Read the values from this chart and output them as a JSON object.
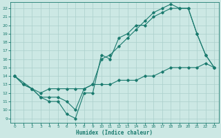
{
  "title": "",
  "xlabel": "Humidex (Indice chaleur)",
  "background_color": "#cce8e4",
  "grid_color": "#aacfcb",
  "line_color": "#1a7a6e",
  "xlim": [
    -0.5,
    23.5
  ],
  "ylim": [
    8.5,
    22.7
  ],
  "xticks": [
    0,
    1,
    2,
    3,
    4,
    5,
    6,
    7,
    8,
    9,
    10,
    11,
    12,
    13,
    14,
    15,
    16,
    17,
    18,
    19,
    20,
    21,
    22,
    23
  ],
  "yticks": [
    9,
    10,
    11,
    12,
    13,
    14,
    15,
    16,
    17,
    18,
    19,
    20,
    21,
    22
  ],
  "line1_x": [
    0,
    1,
    2,
    3,
    4,
    5,
    6,
    7,
    8,
    9,
    10,
    11,
    12,
    13,
    14,
    15,
    16,
    17,
    18,
    19,
    20,
    21,
    22,
    23
  ],
  "line1_y": [
    14,
    13,
    12.5,
    11.5,
    11,
    11,
    9.5,
    9,
    12,
    12,
    16.5,
    16,
    18.5,
    19,
    20,
    20,
    21,
    21.5,
    22,
    22,
    22,
    19,
    16.5,
    15
  ],
  "line2_x": [
    0,
    1,
    2,
    3,
    4,
    5,
    6,
    7,
    8,
    9,
    10,
    11,
    12,
    13,
    14,
    15,
    16,
    17,
    18,
    19,
    20,
    21,
    22,
    23
  ],
  "line2_y": [
    14,
    13,
    12.5,
    11.5,
    11.5,
    11.5,
    11,
    10,
    12.5,
    13,
    16,
    16.5,
    17.5,
    18.5,
    19.5,
    20.5,
    21.5,
    22,
    22.5,
    22,
    22,
    19,
    16.5,
    15
  ],
  "line3_x": [
    0,
    2,
    3,
    4,
    5,
    6,
    7,
    8,
    9,
    10,
    11,
    12,
    13,
    14,
    15,
    16,
    17,
    18,
    19,
    20,
    21,
    22,
    23
  ],
  "line3_y": [
    14,
    12.5,
    12,
    12.5,
    12.5,
    12.5,
    12.5,
    12.5,
    13,
    13,
    13,
    13.5,
    13.5,
    13.5,
    14,
    14,
    14.5,
    15,
    15,
    15,
    15,
    15.5,
    15
  ]
}
